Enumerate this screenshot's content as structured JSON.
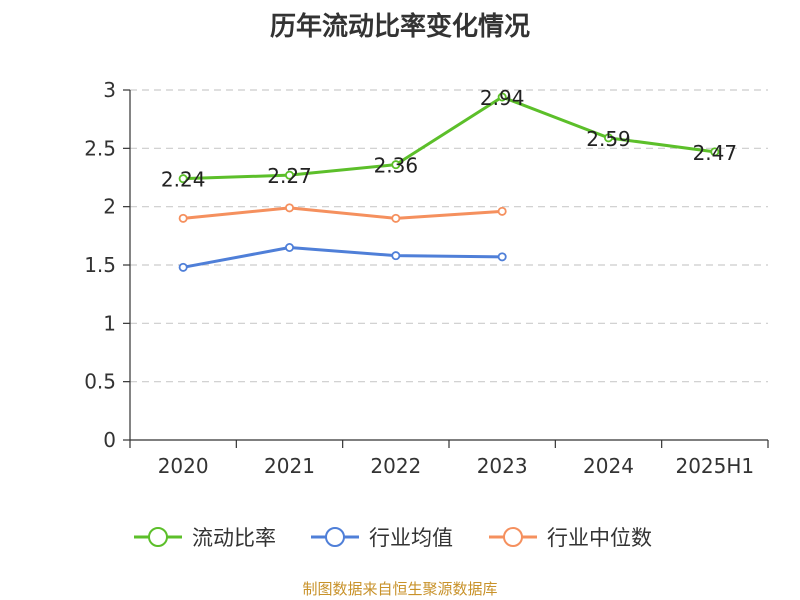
{
  "chart_data": {
    "type": "line",
    "title": "历年流动比率变化情况",
    "categories": [
      "2020",
      "2021",
      "2022",
      "2023",
      "2024",
      "2025H1"
    ],
    "ylim": [
      0,
      3
    ],
    "yticks": [
      "0",
      "0.5",
      "1",
      "1.5",
      "2",
      "2.5",
      "3"
    ],
    "grid": true,
    "legend_position": "bottom",
    "series": [
      {
        "name": "流动比率",
        "color": "#5cbf2a",
        "values": [
          2.24,
          2.27,
          2.36,
          2.94,
          2.59,
          2.47
        ],
        "labels": [
          "2.24",
          "2.27",
          "2.36",
          "2.94",
          "2.59",
          "2.47"
        ]
      },
      {
        "name": "行业均值",
        "color": "#4f7fd8",
        "values": [
          1.48,
          1.65,
          1.58,
          1.57,
          null,
          null
        ]
      },
      {
        "name": "行业中位数",
        "color": "#f5905e",
        "values": [
          1.9,
          1.99,
          1.9,
          1.96,
          null,
          null
        ]
      }
    ]
  },
  "footer": "制图数据来自恒生聚源数据库"
}
